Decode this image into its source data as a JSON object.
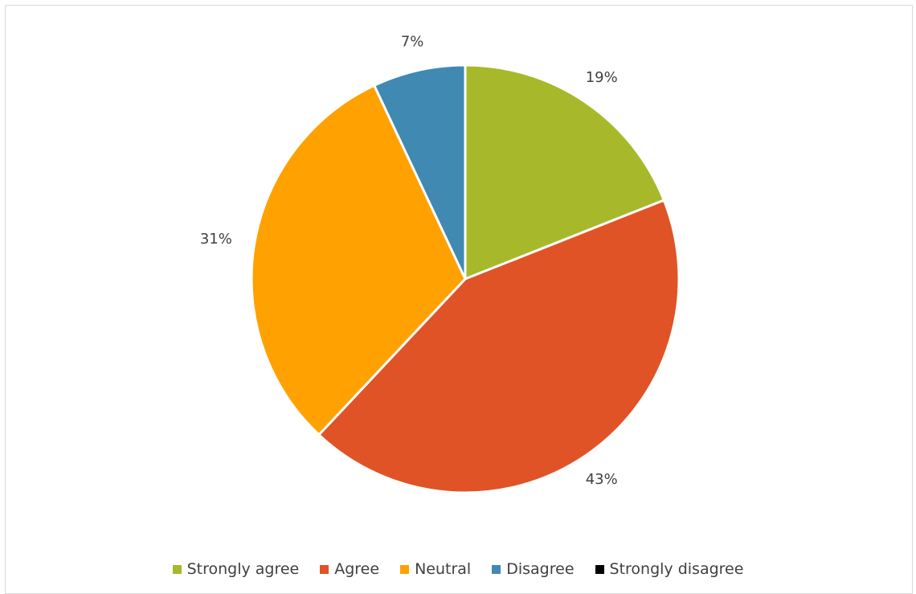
{
  "chart_data": {
    "type": "pie",
    "categories": [
      "Strongly agree",
      "Agree",
      "Neutral",
      "Disagree",
      "Strongly disagree"
    ],
    "values": [
      19,
      43,
      31,
      7,
      0
    ],
    "labels": [
      "19%",
      "43%",
      "31%",
      "7%",
      ""
    ],
    "colors": [
      "#a7b92a",
      "#e05326",
      "#ffa100",
      "#3f89b3",
      "#000000"
    ],
    "legend_position": "bottom"
  }
}
